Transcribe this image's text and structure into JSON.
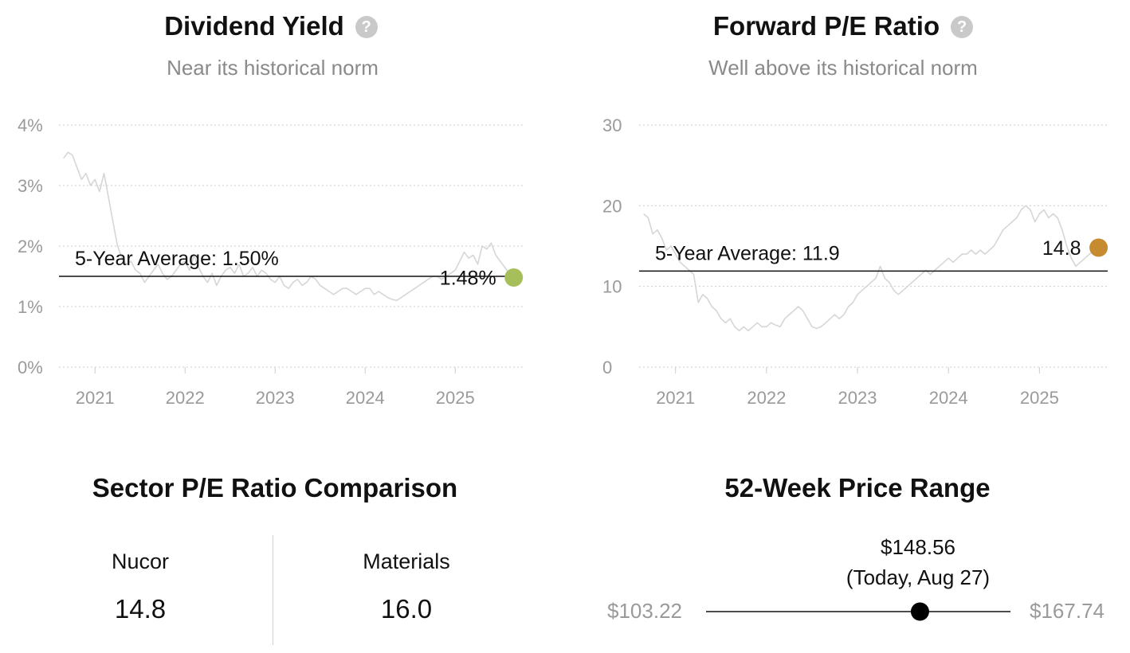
{
  "dividend": {
    "title": "Dividend Yield",
    "help": "?",
    "subtitle": "Near its historical norm",
    "avg_label": "5-Year Average: 1.50%",
    "current_label": "1.48%"
  },
  "pe": {
    "title": "Forward P/E Ratio",
    "help": "?",
    "subtitle": "Well above its historical norm",
    "avg_label": "5-Year Average: 11.9",
    "current_label": "14.8"
  },
  "sector": {
    "title": "Sector P/E Ratio Comparison",
    "company_label": "Nucor",
    "company_value": "14.8",
    "sector_label": "Materials",
    "sector_value": "16.0"
  },
  "range": {
    "title": "52-Week Price Range",
    "low": "$103.22",
    "high": "$167.74",
    "current_price": "$148.56",
    "current_note": "(Today, Aug 27)",
    "low_value": 103.22,
    "high_value": 167.74,
    "current_value": 148.56
  },
  "colors": {
    "line": "#d6d6d6",
    "grid": "#cccccc",
    "dividend_dot": "#a7bf5a",
    "pe_dot": "#c58b2e",
    "axis_text": "#9a9a9a"
  },
  "chart_data": [
    {
      "type": "line",
      "title": "Dividend Yield",
      "subtitle": "Near its historical norm",
      "y_ticks": [
        "0%",
        "1%",
        "2%",
        "3%",
        "4%"
      ],
      "x_ticks": [
        "2021",
        "2022",
        "2023",
        "2024",
        "2025"
      ],
      "ylim": [
        0,
        4
      ],
      "xlim": [
        2020.6,
        2025.75
      ],
      "grid": true,
      "average": 1.5,
      "current": {
        "x": 2025.65,
        "y": 1.48
      },
      "series": [
        {
          "x": [
            2020.65,
            2020.7,
            2020.75,
            2020.8,
            2020.85,
            2020.9,
            2020.95,
            2021.0,
            2021.05,
            2021.1,
            2021.15,
            2021.2,
            2021.25,
            2021.3,
            2021.35,
            2021.4,
            2021.45,
            2021.5,
            2021.55,
            2021.6,
            2021.65,
            2021.7,
            2021.75,
            2021.8,
            2021.85,
            2021.9,
            2021.95,
            2022.0,
            2022.05,
            2022.1,
            2022.15,
            2022.2,
            2022.25,
            2022.3,
            2022.35,
            2022.4,
            2022.45,
            2022.5,
            2022.55,
            2022.6,
            2022.65,
            2022.7,
            2022.75,
            2022.8,
            2022.85,
            2022.9,
            2022.95,
            2023.0,
            2023.05,
            2023.1,
            2023.15,
            2023.2,
            2023.25,
            2023.3,
            2023.35,
            2023.4,
            2023.45,
            2023.5,
            2023.55,
            2023.6,
            2023.65,
            2023.7,
            2023.75,
            2023.8,
            2023.85,
            2023.9,
            2023.95,
            2024.0,
            2024.05,
            2024.1,
            2024.15,
            2024.2,
            2024.25,
            2024.3,
            2024.35,
            2024.4,
            2024.45,
            2024.5,
            2024.55,
            2024.6,
            2024.65,
            2024.7,
            2024.75,
            2024.8,
            2024.85,
            2024.9,
            2024.95,
            2025.0,
            2025.05,
            2025.1,
            2025.15,
            2025.2,
            2025.25,
            2025.3,
            2025.35,
            2025.4,
            2025.45,
            2025.5,
            2025.55,
            2025.6,
            2025.65
          ],
          "values": [
            3.45,
            3.55,
            3.5,
            3.3,
            3.1,
            3.2,
            3.0,
            3.1,
            2.9,
            3.2,
            2.8,
            2.4,
            2.0,
            1.8,
            1.7,
            1.75,
            1.6,
            1.55,
            1.4,
            1.5,
            1.6,
            1.7,
            1.55,
            1.45,
            1.5,
            1.6,
            1.7,
            1.75,
            1.6,
            1.85,
            1.65,
            1.5,
            1.4,
            1.55,
            1.35,
            1.5,
            1.6,
            1.65,
            1.55,
            1.7,
            1.5,
            1.55,
            1.65,
            1.5,
            1.6,
            1.55,
            1.45,
            1.4,
            1.5,
            1.35,
            1.3,
            1.4,
            1.45,
            1.35,
            1.4,
            1.5,
            1.45,
            1.35,
            1.3,
            1.25,
            1.2,
            1.25,
            1.3,
            1.3,
            1.25,
            1.2,
            1.25,
            1.3,
            1.3,
            1.2,
            1.25,
            1.2,
            1.15,
            1.12,
            1.1,
            1.15,
            1.2,
            1.25,
            1.3,
            1.35,
            1.4,
            1.45,
            1.5,
            1.5,
            1.45,
            1.5,
            1.55,
            1.6,
            1.75,
            1.9,
            1.8,
            1.85,
            1.7,
            2.0,
            1.95,
            2.05,
            1.85,
            1.75,
            1.65,
            1.55,
            1.48
          ]
        }
      ]
    },
    {
      "type": "line",
      "title": "Forward P/E Ratio",
      "subtitle": "Well above its historical norm",
      "y_ticks": [
        "0",
        "10",
        "20",
        "30"
      ],
      "x_ticks": [
        "2021",
        "2022",
        "2023",
        "2024",
        "2025"
      ],
      "ylim": [
        0,
        30
      ],
      "xlim": [
        2020.6,
        2025.75
      ],
      "grid": true,
      "average": 11.9,
      "current": {
        "x": 2025.65,
        "y": 14.8
      },
      "series": [
        {
          "x": [
            2020.65,
            2020.7,
            2020.75,
            2020.8,
            2020.85,
            2020.9,
            2020.95,
            2021.0,
            2021.05,
            2021.1,
            2021.15,
            2021.2,
            2021.25,
            2021.3,
            2021.35,
            2021.4,
            2021.45,
            2021.5,
            2021.55,
            2021.6,
            2021.65,
            2021.7,
            2021.75,
            2021.8,
            2021.85,
            2021.9,
            2021.95,
            2022.0,
            2022.05,
            2022.1,
            2022.15,
            2022.2,
            2022.25,
            2022.3,
            2022.35,
            2022.4,
            2022.45,
            2022.5,
            2022.55,
            2022.6,
            2022.65,
            2022.7,
            2022.75,
            2022.8,
            2022.85,
            2022.9,
            2022.95,
            2023.0,
            2023.05,
            2023.1,
            2023.15,
            2023.2,
            2023.25,
            2023.3,
            2023.35,
            2023.4,
            2023.45,
            2023.5,
            2023.55,
            2023.6,
            2023.65,
            2023.7,
            2023.75,
            2023.8,
            2023.85,
            2023.9,
            2023.95,
            2024.0,
            2024.05,
            2024.1,
            2024.15,
            2024.2,
            2024.25,
            2024.3,
            2024.35,
            2024.4,
            2024.45,
            2024.5,
            2024.55,
            2024.6,
            2024.65,
            2024.7,
            2024.75,
            2024.8,
            2024.85,
            2024.9,
            2024.95,
            2025.0,
            2025.05,
            2025.1,
            2025.15,
            2025.2,
            2025.25,
            2025.3,
            2025.35,
            2025.4,
            2025.45,
            2025.5,
            2025.55,
            2025.6,
            2025.65
          ],
          "values": [
            19.0,
            18.5,
            16.5,
            17.0,
            16.0,
            14.5,
            15.0,
            14.0,
            13.0,
            12.5,
            12.0,
            11.5,
            8.0,
            9.0,
            8.5,
            7.5,
            7.0,
            6.0,
            5.5,
            6.0,
            5.0,
            4.5,
            5.0,
            4.5,
            5.0,
            5.5,
            5.0,
            5.0,
            5.5,
            5.2,
            5.0,
            6.0,
            6.5,
            7.0,
            7.5,
            7.0,
            6.0,
            5.0,
            4.8,
            5.0,
            5.5,
            6.0,
            6.5,
            6.0,
            6.5,
            7.5,
            8.0,
            9.0,
            9.5,
            10.0,
            10.5,
            11.0,
            12.5,
            11.0,
            10.5,
            9.5,
            9.0,
            9.5,
            10.0,
            10.5,
            11.0,
            11.5,
            12.0,
            11.5,
            12.0,
            12.5,
            13.0,
            13.5,
            13.0,
            13.5,
            14.0,
            14.0,
            14.5,
            14.0,
            14.5,
            14.0,
            14.5,
            15.0,
            16.0,
            17.0,
            17.5,
            18.0,
            18.5,
            19.5,
            20.0,
            19.5,
            18.0,
            19.0,
            19.5,
            18.5,
            19.0,
            18.5,
            17.0,
            15.0,
            13.5,
            12.5,
            13.0,
            13.5,
            14.0,
            14.5,
            14.8
          ]
        }
      ]
    }
  ]
}
